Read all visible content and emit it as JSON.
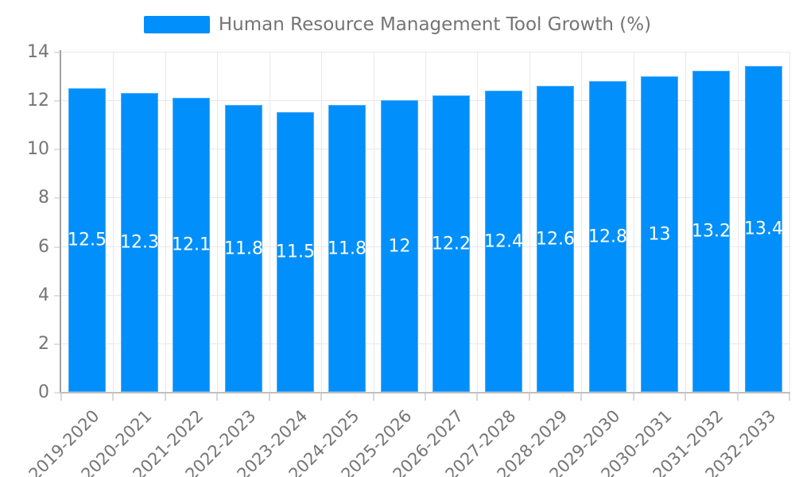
{
  "chart": {
    "colors": {
      "bar": "#008FFB",
      "bar_border": "#4FACF9",
      "grid": "#e8e8e8",
      "axis_line_y": "#a2a2a2",
      "axis_line_x": "#c0c0c0",
      "tick_y": "#e0e0e0",
      "tick_x": "#d8d8d8",
      "axis_text": "#757575",
      "legend_text": "#747474",
      "data_label_text": "#ffffff",
      "background": "#ffffff"
    }
  },
  "chart_data": {
    "type": "bar",
    "title": "Human Resource Management Tool Growth (%)",
    "categories": [
      "2019-2020",
      "2020-2021",
      "2021-2022",
      "2022-2023",
      "2023-2024",
      "2024-2025",
      "2025-2026",
      "2026-2027",
      "2027-2028",
      "2028-2029",
      "2029-2030",
      "2030-2031",
      "2031-2032",
      "2032-2033"
    ],
    "values": [
      12.5,
      12.3,
      12.1,
      11.8,
      11.5,
      11.8,
      12,
      12.2,
      12.4,
      12.6,
      12.8,
      13,
      13.2,
      13.4
    ],
    "data_labels": [
      "12.5",
      "12.3",
      "12.1",
      "11.8",
      "11.5",
      "11.8",
      "12",
      "12.2",
      "12.4",
      "12.6",
      "12.8",
      "13",
      "13.2",
      "13.4"
    ],
    "ytick_labels": [
      "0",
      "2",
      "4",
      "6",
      "8",
      "10",
      "12",
      "14"
    ],
    "yticks": [
      0,
      2,
      4,
      6,
      8,
      10,
      12,
      14
    ],
    "ylim": [
      0,
      14
    ],
    "xlabel": "",
    "ylabel": "",
    "grid": true,
    "legend_position": "top",
    "x_label_rotation": -45,
    "data_label_position": "center"
  }
}
